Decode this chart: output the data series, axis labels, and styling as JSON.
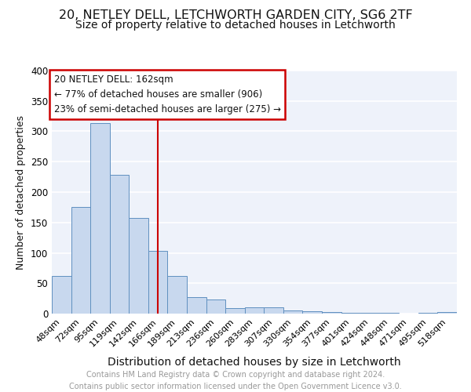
{
  "title": "20, NETLEY DELL, LETCHWORTH GARDEN CITY, SG6 2TF",
  "subtitle": "Size of property relative to detached houses in Letchworth",
  "xlabel": "Distribution of detached houses by size in Letchworth",
  "ylabel": "Number of detached properties",
  "categories": [
    "48sqm",
    "72sqm",
    "95sqm",
    "119sqm",
    "142sqm",
    "166sqm",
    "189sqm",
    "213sqm",
    "236sqm",
    "260sqm",
    "283sqm",
    "307sqm",
    "330sqm",
    "354sqm",
    "377sqm",
    "401sqm",
    "424sqm",
    "448sqm",
    "471sqm",
    "495sqm",
    "518sqm"
  ],
  "values": [
    62,
    175,
    313,
    229,
    158,
    103,
    62,
    27,
    23,
    9,
    10,
    10,
    5,
    4,
    2,
    1,
    1,
    1,
    0,
    1,
    3
  ],
  "bar_color": "#c8d8ee",
  "bar_edge_color": "#6090c0",
  "vline_x": 5,
  "vline_color": "#cc0000",
  "annotation_line1": "20 NETLEY DELL: 162sqm",
  "annotation_line2": "← 77% of detached houses are smaller (906)",
  "annotation_line3": "23% of semi-detached houses are larger (275) →",
  "annotation_box_color": "#cc0000",
  "ylim": [
    0,
    400
  ],
  "yticks": [
    0,
    50,
    100,
    150,
    200,
    250,
    300,
    350,
    400
  ],
  "background_color": "#eef2fa",
  "grid_color": "#ffffff",
  "title_fontsize": 11.5,
  "subtitle_fontsize": 10,
  "axis_label_fontsize": 10,
  "ylabel_fontsize": 9,
  "tick_fontsize": 8,
  "footer_text": "Contains HM Land Registry data © Crown copyright and database right 2024.\nContains public sector information licensed under the Open Government Licence v3.0.",
  "footer_fontsize": 7,
  "footer_color": "#999999"
}
